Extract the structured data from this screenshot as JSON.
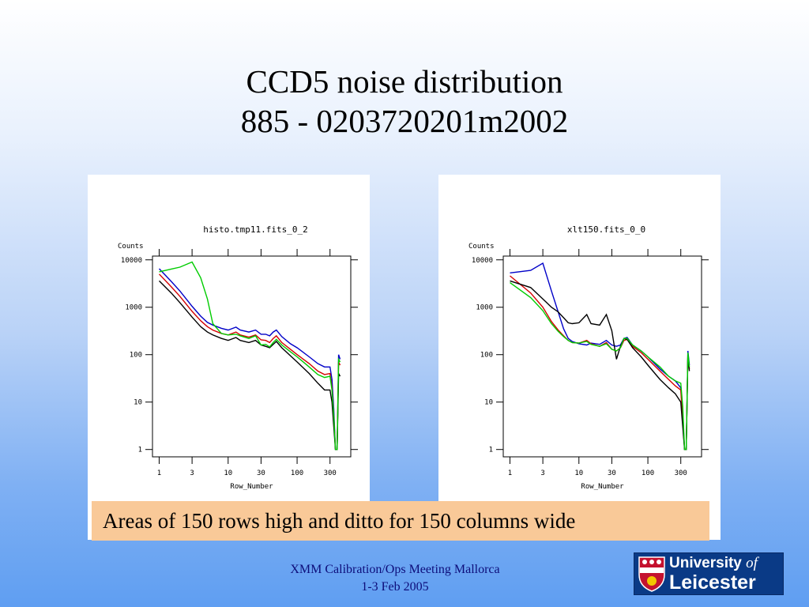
{
  "slide": {
    "title_line1": "CCD5 noise distribution",
    "title_line2": "885 - 0203720201m2002",
    "caption": "Areas of 150 rows high and ditto for 150 columns wide",
    "footer_line1": "XMM Calibration/Ops Meeting Mallorca",
    "footer_line2": "1-3 Feb 2005",
    "logo": {
      "line1_a": "University",
      "line1_b": "of",
      "line2": "Leicester",
      "icon": "university-crest-icon"
    }
  },
  "chart_data": [
    {
      "type": "line",
      "title": "histo.tmp11.fits_0_2",
      "xlabel": "Row_Number",
      "ylabel": "Counts",
      "xscale": "log",
      "yscale": "log",
      "xlim": [
        0.8,
        600
      ],
      "ylim": [
        0.7,
        12000
      ],
      "xticks": [
        1,
        3,
        10,
        30,
        100,
        300
      ],
      "xtick_labels": [
        "1",
        "3",
        "10",
        "30",
        "100",
        "300"
      ],
      "yticks": [
        1,
        10,
        100,
        1000,
        10000
      ],
      "ytick_labels": [
        "1",
        "10",
        "100",
        "1000",
        "10000"
      ],
      "series": [
        {
          "color": "#0000c8",
          "x": [
            1,
            1.5,
            2,
            3,
            4,
            5,
            6,
            8,
            10,
            13,
            15,
            20,
            25,
            30,
            35,
            40,
            45,
            50,
            60,
            80,
            100,
            150,
            200,
            250,
            300,
            320,
            340,
            360,
            380,
            400,
            420
          ],
          "y": [
            6500,
            3500,
            2200,
            1050,
            650,
            480,
            420,
            360,
            330,
            380,
            330,
            300,
            330,
            270,
            270,
            250,
            300,
            330,
            240,
            170,
            140,
            90,
            65,
            55,
            55,
            30,
            7,
            1,
            1,
            100,
            80
          ]
        },
        {
          "color": "#d40000",
          "x": [
            1,
            1.5,
            2,
            3,
            4,
            5,
            6,
            8,
            10,
            13,
            15,
            20,
            25,
            30,
            35,
            40,
            45,
            50,
            60,
            80,
            100,
            150,
            200,
            250,
            300,
            320,
            340,
            360,
            380,
            400,
            420
          ],
          "y": [
            5000,
            2700,
            1700,
            820,
            520,
            390,
            330,
            280,
            260,
            300,
            260,
            235,
            260,
            205,
            200,
            180,
            220,
            250,
            180,
            130,
            100,
            65,
            45,
            38,
            40,
            20,
            5,
            1,
            1,
            70,
            60
          ]
        },
        {
          "color": "#000000",
          "x": [
            1,
            1.5,
            2,
            3,
            4,
            5,
            6,
            8,
            10,
            13,
            15,
            20,
            25,
            30,
            35,
            40,
            45,
            50,
            60,
            80,
            100,
            150,
            200,
            250,
            300,
            320,
            340,
            360,
            380,
            400,
            420
          ],
          "y": [
            3600,
            2000,
            1250,
            620,
            390,
            300,
            260,
            220,
            200,
            230,
            200,
            180,
            200,
            160,
            150,
            140,
            165,
            190,
            140,
            95,
            70,
            40,
            25,
            18,
            18,
            10,
            3,
            1,
            1,
            40,
            35
          ]
        },
        {
          "color": "#00cc00",
          "x": [
            1,
            1.5,
            2,
            3,
            4,
            5,
            6,
            8,
            10,
            13,
            15,
            20,
            25,
            30,
            35,
            40,
            45,
            50,
            60,
            80,
            100,
            150,
            200,
            250,
            300,
            320,
            340,
            360,
            380,
            400,
            420
          ],
          "y": [
            5600,
            6400,
            7000,
            9000,
            4200,
            1500,
            450,
            280,
            260,
            270,
            250,
            220,
            250,
            160,
            165,
            145,
            180,
            210,
            160,
            115,
            90,
            55,
            38,
            33,
            35,
            18,
            5,
            1,
            1,
            80,
            70
          ]
        }
      ]
    },
    {
      "type": "line",
      "title": "xlt150.fits_0_0",
      "xlabel": "Row_Number",
      "ylabel": "Counts",
      "xscale": "log",
      "yscale": "log",
      "xlim": [
        0.8,
        600
      ],
      "ylim": [
        0.7,
        12000
      ],
      "xticks": [
        1,
        3,
        10,
        30,
        100,
        300
      ],
      "xtick_labels": [
        "1",
        "3",
        "10",
        "30",
        "100",
        "300"
      ],
      "yticks": [
        1,
        10,
        100,
        1000,
        10000
      ],
      "ytick_labels": [
        "1",
        "10",
        "100",
        "1000",
        "10000"
      ],
      "series": [
        {
          "color": "#0000c8",
          "x": [
            1,
            2,
            3,
            4,
            5,
            6,
            7,
            8,
            10,
            13,
            15,
            20,
            25,
            30,
            35,
            40,
            45,
            50,
            60,
            80,
            100,
            150,
            200,
            250,
            300,
            320,
            340,
            360,
            380,
            400
          ],
          "y": [
            5300,
            6000,
            8500,
            2200,
            800,
            350,
            220,
            190,
            170,
            160,
            175,
            165,
            200,
            160,
            150,
            160,
            220,
            230,
            160,
            120,
            90,
            50,
            35,
            28,
            20,
            5,
            1,
            1,
            120,
            60
          ]
        },
        {
          "color": "#d40000",
          "x": [
            1,
            2,
            3,
            4,
            5,
            6,
            7,
            8,
            10,
            13,
            15,
            20,
            25,
            30,
            35,
            40,
            45,
            50,
            60,
            80,
            100,
            150,
            200,
            250,
            300,
            320,
            340,
            360,
            380,
            400
          ],
          "y": [
            4600,
            2000,
            1000,
            500,
            330,
            250,
            200,
            180,
            175,
            200,
            170,
            150,
            180,
            130,
            120,
            140,
            200,
            210,
            150,
            110,
            80,
            45,
            30,
            22,
            18,
            4,
            1,
            1,
            100,
            50
          ]
        },
        {
          "color": "#000000",
          "x": [
            1,
            2,
            3,
            4,
            5,
            6,
            7,
            8,
            10,
            13,
            15,
            20,
            25,
            30,
            35,
            40,
            45,
            50,
            60,
            80,
            100,
            150,
            200,
            250,
            300,
            320,
            340,
            360,
            380,
            400
          ],
          "y": [
            3600,
            2600,
            1500,
            1000,
            800,
            600,
            470,
            450,
            470,
            700,
            450,
            420,
            700,
            320,
            80,
            150,
            220,
            210,
            140,
            90,
            60,
            30,
            20,
            15,
            10,
            3,
            1,
            1,
            90,
            45
          ]
        },
        {
          "color": "#00cc00",
          "x": [
            1,
            2,
            3,
            4,
            5,
            6,
            7,
            8,
            10,
            13,
            15,
            20,
            25,
            30,
            35,
            40,
            45,
            50,
            60,
            80,
            100,
            150,
            200,
            250,
            300,
            320,
            340,
            360,
            380,
            400
          ],
          "y": [
            3300,
            1600,
            850,
            450,
            310,
            240,
            200,
            180,
            175,
            190,
            165,
            150,
            170,
            130,
            120,
            140,
            220,
            220,
            160,
            120,
            90,
            55,
            35,
            28,
            25,
            8,
            1,
            1,
            110,
            55
          ]
        }
      ]
    }
  ]
}
